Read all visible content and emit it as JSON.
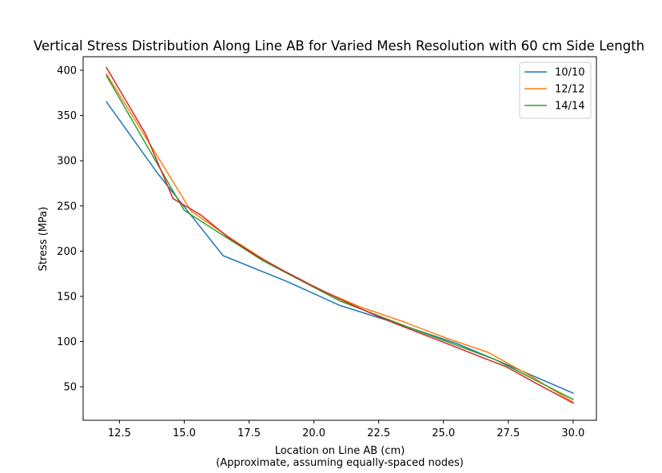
{
  "chart_data": {
    "type": "line",
    "title": "Vertical Stress Distribution Along Line AB for Varied Mesh Resolution with 60 cm Side Length",
    "xlabel": "Location on Line AB (cm)",
    "xlabel_note": "(Approximate, assuming equally-spaced nodes)",
    "ylabel": "Stress (MPa)",
    "xlim": [
      11.1,
      30.9
    ],
    "ylim": [
      13,
      415
    ],
    "xticks": [
      12.5,
      15.0,
      17.5,
      20.0,
      22.5,
      25.0,
      27.5,
      30.0
    ],
    "xtick_labels": [
      "12.5",
      "15.0",
      "17.5",
      "20.0",
      "22.5",
      "25.0",
      "27.5",
      "30.0"
    ],
    "yticks": [
      50,
      100,
      150,
      200,
      250,
      300,
      350,
      400
    ],
    "ytick_labels": [
      "50",
      "100",
      "150",
      "200",
      "250",
      "300",
      "350",
      "400"
    ],
    "grid": false,
    "legend_position": "top-right",
    "series": [
      {
        "name": "10/10",
        "color": "#1f77b4",
        "in_legend": true,
        "x": [
          12.0,
          14.0,
          16.5,
          19.0,
          21.0,
          23.0,
          25.5,
          27.0,
          30.0
        ],
        "y": [
          365,
          285,
          195,
          166,
          140,
          122,
          98,
          80,
          43
        ]
      },
      {
        "name": "12/12",
        "color": "#ff7f0e",
        "in_legend": true,
        "x": [
          12.0,
          13.64,
          15.27,
          16.91,
          18.55,
          20.18,
          21.82,
          23.45,
          25.09,
          26.73,
          28.36,
          30.0
        ],
        "y": [
          396,
          320,
          244,
          212,
          182,
          158,
          138,
          122,
          104,
          88,
          62,
          33
        ]
      },
      {
        "name": "14/14",
        "color": "#2ca02c",
        "in_legend": true,
        "x": [
          12.0,
          15.0,
          18.0,
          21.0,
          24.0,
          27.0,
          30.0
        ],
        "y": [
          394,
          245,
          190,
          145,
          112,
          80,
          36
        ]
      },
      {
        "name": "",
        "color": "#d62728",
        "in_legend": false,
        "x": [
          12.0,
          13.5,
          14.57,
          15.64,
          16.71,
          17.79,
          18.86,
          19.93,
          21.0,
          22.07,
          23.14,
          24.21,
          25.29,
          26.36,
          27.43,
          28.5,
          30.0
        ],
        "y": [
          403,
          330,
          258,
          240,
          215,
          195,
          178,
          162,
          147,
          133,
          120,
          108,
          96,
          84,
          72,
          55,
          32
        ]
      }
    ]
  }
}
